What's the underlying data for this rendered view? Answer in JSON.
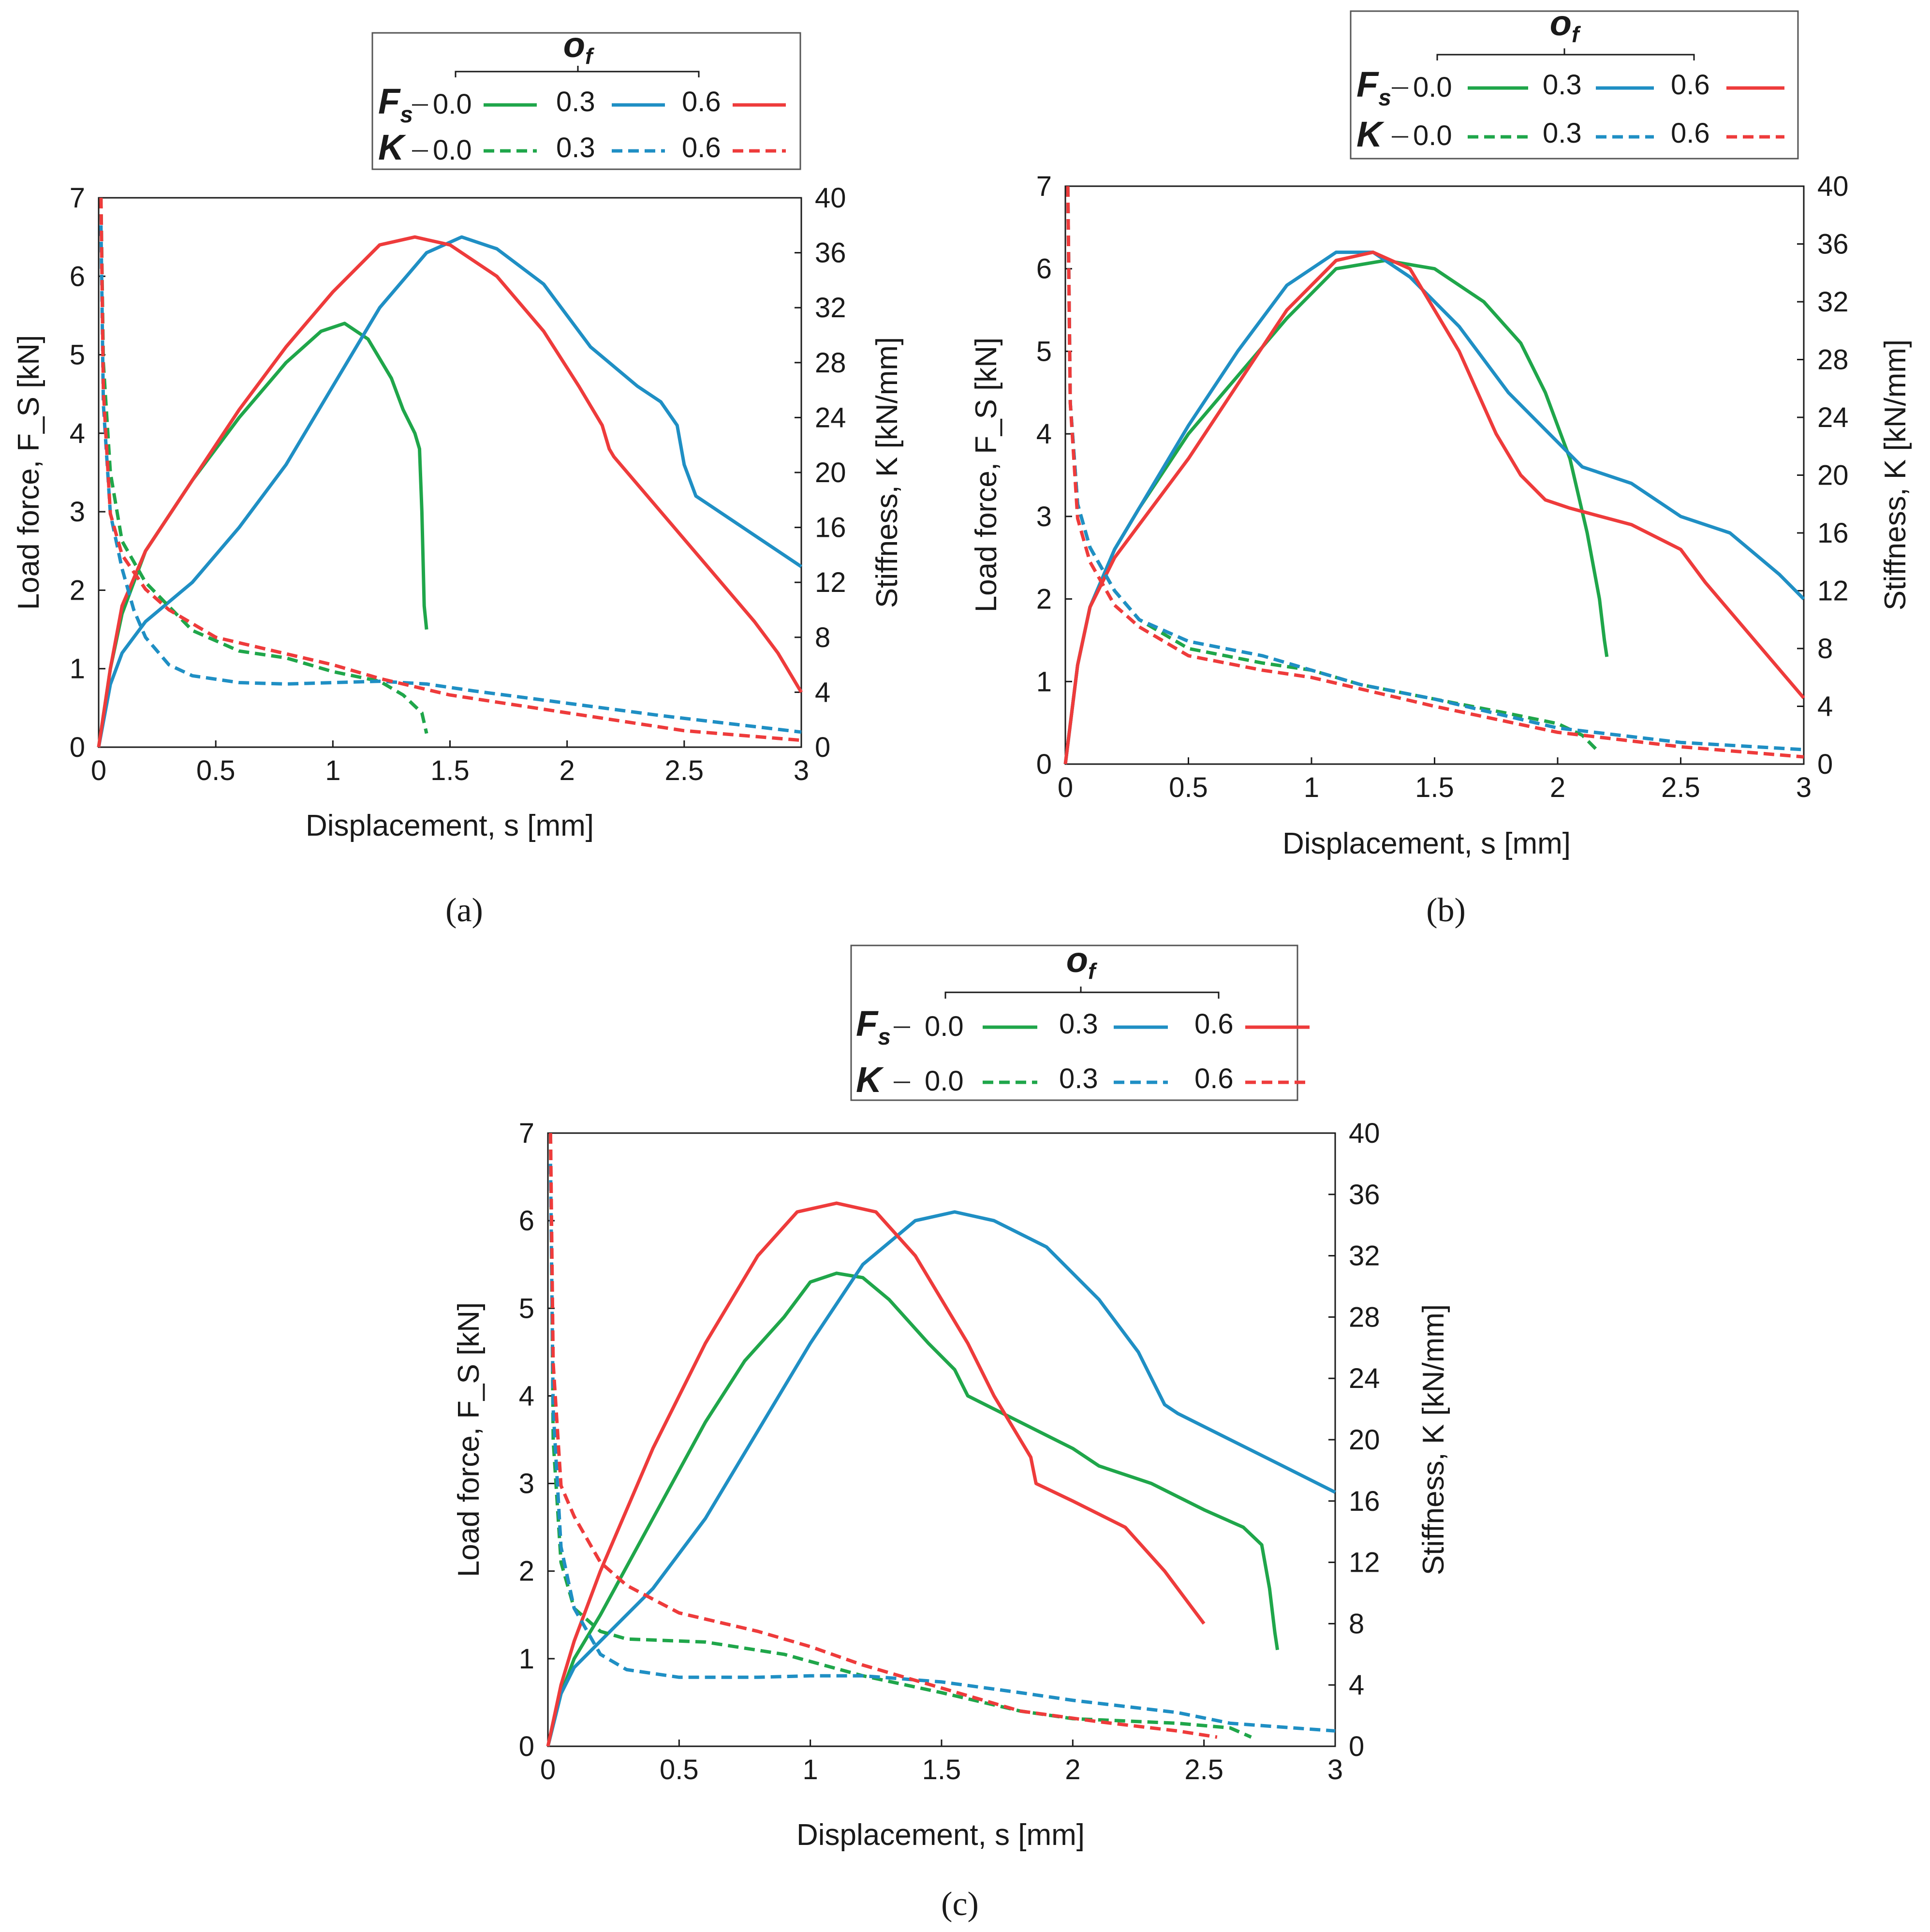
{
  "colors": {
    "oc00": "#1fa64a",
    "oc03": "#1f8fc4",
    "oc06": "#ee3b3b",
    "text": "#1a1a1a"
  },
  "legend": {
    "title": "o",
    "title_sub": "f",
    "row1_symbol": "F",
    "row1_sub": "s",
    "row2_symbol": "K",
    "levels": [
      "0.0",
      "0.3",
      "0.6"
    ]
  },
  "chart_data": [
    {
      "type": "line",
      "caption": "(a)",
      "xlabel": "Displacement, s [mm]",
      "ylabel": "Load force, F_S [kN]",
      "y2label": "Stiffness, K [kN/mm]",
      "xlim": [
        0,
        3
      ],
      "ylim": [
        0,
        7
      ],
      "y2lim": [
        0,
        40
      ],
      "xticks": [
        "0",
        "0.5",
        "1",
        "1.5",
        "2",
        "2.5",
        "3"
      ],
      "yticks": [
        "0",
        "1",
        "2",
        "3",
        "4",
        "5",
        "6",
        "7"
      ],
      "y2ticks": [
        "0",
        "4",
        "8",
        "12",
        "16",
        "20",
        "24",
        "28",
        "32",
        "36",
        "40"
      ],
      "series": [
        {
          "name": "Fs 0.0",
          "axis": "left",
          "color": "oc00",
          "dash": false,
          "x": [
            0,
            0.05,
            0.1,
            0.2,
            0.4,
            0.6,
            0.8,
            0.95,
            1.05,
            1.15,
            1.25,
            1.3,
            1.35,
            1.37,
            1.38,
            1.39,
            1.4
          ],
          "y": [
            0,
            1.0,
            1.7,
            2.5,
            3.4,
            4.2,
            4.9,
            5.3,
            5.4,
            5.2,
            4.7,
            4.3,
            4.0,
            3.8,
            3.0,
            1.8,
            1.5
          ]
        },
        {
          "name": "Fs 0.3",
          "axis": "left",
          "color": "oc03",
          "dash": false,
          "x": [
            0,
            0.05,
            0.1,
            0.2,
            0.4,
            0.6,
            0.8,
            1.0,
            1.2,
            1.4,
            1.55,
            1.7,
            1.9,
            2.1,
            2.3,
            2.4,
            2.47,
            2.5,
            2.55,
            2.6,
            2.8,
            3.0
          ],
          "y": [
            0,
            0.8,
            1.2,
            1.6,
            2.1,
            2.8,
            3.6,
            4.6,
            5.6,
            6.3,
            6.5,
            6.35,
            5.9,
            5.1,
            4.6,
            4.4,
            4.1,
            3.6,
            3.2,
            3.1,
            2.7,
            2.3
          ]
        },
        {
          "name": "Fs 0.6",
          "axis": "left",
          "color": "oc06",
          "dash": false,
          "x": [
            0,
            0.05,
            0.1,
            0.2,
            0.4,
            0.6,
            0.8,
            1.0,
            1.2,
            1.35,
            1.5,
            1.7,
            1.9,
            2.05,
            2.15,
            2.18,
            2.2,
            2.4,
            2.6,
            2.8,
            2.9,
            3.0
          ],
          "y": [
            0,
            1.0,
            1.8,
            2.5,
            3.4,
            4.3,
            5.1,
            5.8,
            6.4,
            6.5,
            6.4,
            6.0,
            5.3,
            4.6,
            4.1,
            3.8,
            3.7,
            3.0,
            2.3,
            1.6,
            1.2,
            0.7
          ]
        },
        {
          "name": "K 0.0",
          "axis": "right",
          "color": "oc00",
          "dash": true,
          "x": [
            0.01,
            0.02,
            0.05,
            0.1,
            0.2,
            0.4,
            0.6,
            0.8,
            1.0,
            1.2,
            1.3,
            1.38,
            1.4
          ],
          "y": [
            40,
            28,
            20,
            15,
            12,
            8.5,
            7.0,
            6.5,
            5.5,
            4.8,
            3.8,
            2.5,
            1.0
          ]
        },
        {
          "name": "K 0.3",
          "axis": "right",
          "color": "oc03",
          "dash": true,
          "x": [
            0.01,
            0.02,
            0.05,
            0.1,
            0.15,
            0.2,
            0.3,
            0.4,
            0.6,
            0.8,
            1.0,
            1.2,
            1.4,
            1.6,
            2.0,
            2.4,
            2.8,
            3.0
          ],
          "y": [
            38,
            25,
            17,
            13,
            10,
            8,
            6,
            5.2,
            4.7,
            4.6,
            4.7,
            4.8,
            4.6,
            4.1,
            3.2,
            2.3,
            1.5,
            1.1
          ]
        },
        {
          "name": "K 0.6",
          "axis": "right",
          "color": "oc06",
          "dash": true,
          "x": [
            0.01,
            0.02,
            0.05,
            0.1,
            0.2,
            0.3,
            0.5,
            0.8,
            1.0,
            1.2,
            1.5,
            2.0,
            2.5,
            3.0
          ],
          "y": [
            40,
            26,
            17,
            14,
            11.5,
            10,
            8,
            6.8,
            6.0,
            5.0,
            3.8,
            2.5,
            1.2,
            0.5
          ]
        }
      ]
    },
    {
      "type": "line",
      "caption": "(b)",
      "xlabel": "Displacement, s [mm]",
      "ylabel": "Load force, F_S [kN]",
      "y2label": "Stiffness, K [kN/mm]",
      "xlim": [
        0,
        3
      ],
      "ylim": [
        0,
        7
      ],
      "y2lim": [
        0,
        40
      ],
      "xticks": [
        "0",
        "0.5",
        "1",
        "1.5",
        "2",
        "2.5",
        "3"
      ],
      "yticks": [
        "0",
        "1",
        "2",
        "3",
        "4",
        "5",
        "6",
        "7"
      ],
      "y2ticks": [
        "0",
        "4",
        "8",
        "12",
        "16",
        "20",
        "24",
        "28",
        "32",
        "36",
        "40"
      ],
      "series": [
        {
          "name": "Fs 0.0",
          "axis": "left",
          "color": "oc00",
          "dash": false,
          "x": [
            0,
            0.05,
            0.1,
            0.2,
            0.3,
            0.5,
            0.7,
            0.9,
            1.1,
            1.3,
            1.5,
            1.7,
            1.85,
            1.95,
            2.05,
            2.12,
            2.17,
            2.19,
            2.2
          ],
          "y": [
            0,
            1.2,
            1.9,
            2.6,
            3.1,
            4.0,
            4.7,
            5.4,
            6.0,
            6.1,
            6.0,
            5.6,
            5.1,
            4.5,
            3.7,
            2.8,
            2.0,
            1.5,
            1.3
          ]
        },
        {
          "name": "Fs 0.3",
          "axis": "left",
          "color": "oc03",
          "dash": false,
          "x": [
            0,
            0.05,
            0.1,
            0.2,
            0.3,
            0.5,
            0.7,
            0.9,
            1.1,
            1.25,
            1.4,
            1.6,
            1.8,
            2.0,
            2.1,
            2.3,
            2.5,
            2.7,
            2.9,
            3.0
          ],
          "y": [
            0,
            1.2,
            1.9,
            2.6,
            3.1,
            4.1,
            5.0,
            5.8,
            6.2,
            6.2,
            5.9,
            5.3,
            4.5,
            3.9,
            3.6,
            3.4,
            3.0,
            2.8,
            2.3,
            2.0
          ]
        },
        {
          "name": "Fs 0.6",
          "axis": "left",
          "color": "oc06",
          "dash": false,
          "x": [
            0,
            0.05,
            0.1,
            0.2,
            0.3,
            0.5,
            0.7,
            0.9,
            1.1,
            1.25,
            1.4,
            1.6,
            1.75,
            1.85,
            1.95,
            2.05,
            2.3,
            2.5,
            2.6,
            2.8,
            3.0
          ],
          "y": [
            0,
            1.2,
            1.9,
            2.5,
            2.9,
            3.7,
            4.6,
            5.5,
            6.1,
            6.2,
            6.0,
            5.0,
            4.0,
            3.5,
            3.2,
            3.1,
            2.9,
            2.6,
            2.2,
            1.5,
            0.8
          ]
        },
        {
          "name": "K 0.0",
          "axis": "right",
          "color": "oc00",
          "dash": true,
          "x": [
            0.01,
            0.02,
            0.05,
            0.1,
            0.2,
            0.3,
            0.5,
            0.8,
            1.0,
            1.2,
            1.5,
            1.8,
            2.0,
            2.1,
            2.17
          ],
          "y": [
            40,
            25,
            18,
            15,
            12,
            10,
            8,
            7,
            6.5,
            5.5,
            4.5,
            3.5,
            2.8,
            2.0,
            0.8
          ]
        },
        {
          "name": "K 0.3",
          "axis": "right",
          "color": "oc03",
          "dash": true,
          "x": [
            0.01,
            0.02,
            0.05,
            0.1,
            0.2,
            0.3,
            0.5,
            0.8,
            1.0,
            1.2,
            1.5,
            2.0,
            2.5,
            3.0
          ],
          "y": [
            40,
            25,
            18,
            15,
            12,
            10,
            8.5,
            7.5,
            6.5,
            5.5,
            4.5,
            2.5,
            1.5,
            1.0
          ]
        },
        {
          "name": "K 0.6",
          "axis": "right",
          "color": "oc06",
          "dash": true,
          "x": [
            0.01,
            0.02,
            0.05,
            0.1,
            0.2,
            0.3,
            0.5,
            0.8,
            1.0,
            1.2,
            1.5,
            2.0,
            2.5,
            3.0
          ],
          "y": [
            40,
            25,
            17,
            14,
            11,
            9.5,
            7.5,
            6.5,
            6.0,
            5.2,
            4.0,
            2.2,
            1.2,
            0.5
          ]
        }
      ]
    },
    {
      "type": "line",
      "caption": "(c)",
      "xlabel": "Displacement, s [mm]",
      "ylabel": "Load force, F_S [kN]",
      "y2label": "Stiffness, K [kN/mm]",
      "xlim": [
        0,
        3
      ],
      "ylim": [
        0,
        7
      ],
      "y2lim": [
        0,
        40
      ],
      "xticks": [
        "0",
        "0.5",
        "1",
        "1.5",
        "2",
        "2.5",
        "3"
      ],
      "yticks": [
        "0",
        "1",
        "2",
        "3",
        "4",
        "5",
        "6",
        "7"
      ],
      "y2ticks": [
        "0",
        "4",
        "8",
        "12",
        "16",
        "20",
        "24",
        "28",
        "32",
        "36",
        "40"
      ],
      "series": [
        {
          "name": "Fs 0.0",
          "axis": "left",
          "color": "oc00",
          "dash": false,
          "x": [
            0,
            0.05,
            0.1,
            0.2,
            0.4,
            0.6,
            0.75,
            0.9,
            1.0,
            1.1,
            1.2,
            1.3,
            1.45,
            1.55,
            1.6,
            1.8,
            2.0,
            2.05,
            2.1,
            2.3,
            2.5,
            2.65,
            2.72,
            2.75,
            2.77,
            2.78
          ],
          "y": [
            0,
            0.6,
            1.0,
            1.5,
            2.6,
            3.7,
            4.4,
            4.9,
            5.3,
            5.4,
            5.35,
            5.1,
            4.6,
            4.3,
            4.0,
            3.7,
            3.4,
            3.3,
            3.2,
            3.0,
            2.7,
            2.5,
            2.3,
            1.8,
            1.3,
            1.1
          ]
        },
        {
          "name": "Fs 0.3",
          "axis": "left",
          "color": "oc03",
          "dash": false,
          "x": [
            0,
            0.05,
            0.1,
            0.2,
            0.4,
            0.6,
            0.8,
            1.0,
            1.2,
            1.4,
            1.55,
            1.7,
            1.9,
            2.1,
            2.25,
            2.3,
            2.35,
            2.4,
            2.6,
            2.8,
            3.0
          ],
          "y": [
            0,
            0.6,
            0.9,
            1.2,
            1.8,
            2.6,
            3.6,
            4.6,
            5.5,
            6.0,
            6.1,
            6.0,
            5.7,
            5.1,
            4.5,
            4.2,
            3.9,
            3.8,
            3.5,
            3.2,
            2.9
          ]
        },
        {
          "name": "Fs 0.6",
          "axis": "left",
          "color": "oc06",
          "dash": false,
          "x": [
            0,
            0.05,
            0.1,
            0.2,
            0.4,
            0.6,
            0.8,
            0.95,
            1.1,
            1.25,
            1.4,
            1.5,
            1.6,
            1.7,
            1.8,
            1.84,
            1.86,
            2.0,
            2.2,
            2.35,
            2.45,
            2.5
          ],
          "y": [
            0,
            0.7,
            1.2,
            2.0,
            3.4,
            4.6,
            5.6,
            6.1,
            6.2,
            6.1,
            5.6,
            5.1,
            4.6,
            4.0,
            3.5,
            3.3,
            3.0,
            2.8,
            2.5,
            2.0,
            1.6,
            1.4
          ]
        },
        {
          "name": "K 0.0",
          "axis": "right",
          "color": "oc00",
          "dash": true,
          "x": [
            0.01,
            0.02,
            0.05,
            0.1,
            0.2,
            0.3,
            0.6,
            0.9,
            1.2,
            1.5,
            1.8,
            2.0,
            2.4,
            2.6,
            2.68
          ],
          "y": [
            40,
            20,
            12,
            9,
            7.5,
            7.0,
            6.8,
            6.0,
            4.6,
            3.5,
            2.3,
            1.8,
            1.5,
            1.2,
            0.6
          ]
        },
        {
          "name": "K 0.3",
          "axis": "right",
          "color": "oc03",
          "dash": true,
          "x": [
            0.01,
            0.02,
            0.05,
            0.1,
            0.2,
            0.3,
            0.5,
            0.8,
            1.0,
            1.2,
            1.5,
            1.8,
            2.0,
            2.4,
            2.6,
            3.0
          ],
          "y": [
            38,
            22,
            13,
            9,
            6,
            5,
            4.5,
            4.5,
            4.6,
            4.6,
            4.2,
            3.5,
            3.0,
            2.2,
            1.5,
            1.0
          ]
        },
        {
          "name": "K 0.6",
          "axis": "right",
          "color": "oc06",
          "dash": true,
          "x": [
            0.01,
            0.02,
            0.05,
            0.1,
            0.2,
            0.3,
            0.5,
            0.8,
            1.0,
            1.2,
            1.5,
            1.8,
            2.1,
            2.4,
            2.55
          ],
          "y": [
            40,
            25,
            17,
            15,
            12,
            10.5,
            8.7,
            7.5,
            6.5,
            5.3,
            3.8,
            2.3,
            1.6,
            1.0,
            0.6
          ]
        }
      ]
    }
  ]
}
